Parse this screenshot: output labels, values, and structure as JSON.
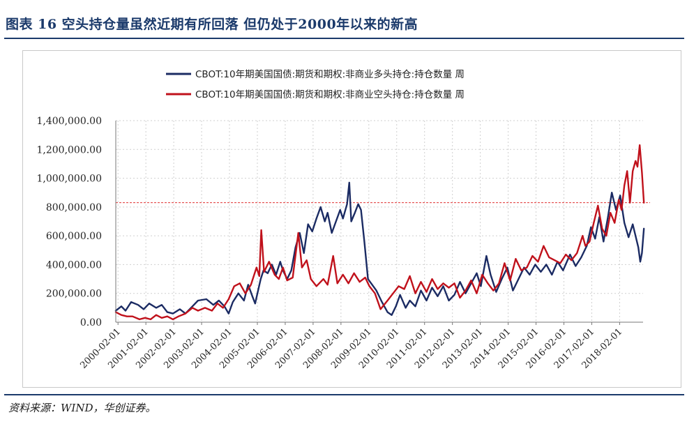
{
  "figure": {
    "title": "图表 16 空头持仓量虽然近期有所回落 但仍处于2000年以来的新高",
    "source": "资料来源：WIND，华创证券。"
  },
  "colors": {
    "long_series": "#1b2b63",
    "short_series": "#c0111b",
    "reference_line": "#e03030",
    "grid": "#cfcfcf",
    "title": "#1b3a6b"
  },
  "chart_data": {
    "type": "line",
    "title": "",
    "xlabel": "",
    "ylabel": "",
    "ylim": [
      0,
      1400000
    ],
    "yticks": [
      0,
      200000,
      400000,
      600000,
      800000,
      1000000,
      1200000,
      1400000
    ],
    "ytick_labels": [
      "0.00",
      "200,000.00",
      "400,000.00",
      "600,000.00",
      "800,000.00",
      "1,000,000.00",
      "1,200,000.00",
      "1,400,000.00"
    ],
    "xlim": [
      2000.0,
      2018.92
    ],
    "xticks": [
      2000.08,
      2001.08,
      2002.08,
      2003.08,
      2004.08,
      2005.08,
      2006.08,
      2007.08,
      2008.08,
      2009.08,
      2010.08,
      2011.08,
      2012.08,
      2013.08,
      2014.08,
      2015.08,
      2016.08,
      2017.08,
      2018.08
    ],
    "xtick_labels": [
      "2000-02-01",
      "2001-02-01",
      "2002-02-01",
      "2003-02-01",
      "2004-02-01",
      "2005-02-01",
      "2006-02-01",
      "2007-02-01",
      "2008-02-01",
      "2009-02-01",
      "2010-02-01",
      "2011-02-01",
      "2012-02-01",
      "2013-02-01",
      "2014-02-01",
      "2015-02-01",
      "2016-02-01",
      "2017-02-01",
      "2018-02-01"
    ],
    "grid": true,
    "legend_position": "top",
    "reference_line": {
      "y": 830000,
      "style": "dashed"
    },
    "series": [
      {
        "name": "CBOT:10年期美国国债:期货和期权:非商业多头持仓:持仓数量 周",
        "color": "#1b2b63",
        "points": [
          [
            2000.0,
            80000
          ],
          [
            2000.2,
            110000
          ],
          [
            2000.35,
            80000
          ],
          [
            2000.55,
            140000
          ],
          [
            2000.8,
            120000
          ],
          [
            2001.0,
            90000
          ],
          [
            2001.2,
            130000
          ],
          [
            2001.45,
            100000
          ],
          [
            2001.65,
            120000
          ],
          [
            2001.85,
            70000
          ],
          [
            2002.05,
            60000
          ],
          [
            2002.3,
            90000
          ],
          [
            2002.5,
            60000
          ],
          [
            2002.75,
            110000
          ],
          [
            2002.95,
            150000
          ],
          [
            2003.25,
            160000
          ],
          [
            2003.5,
            120000
          ],
          [
            2003.7,
            150000
          ],
          [
            2003.9,
            110000
          ],
          [
            2004.05,
            60000
          ],
          [
            2004.2,
            140000
          ],
          [
            2004.4,
            200000
          ],
          [
            2004.6,
            150000
          ],
          [
            2004.75,
            260000
          ],
          [
            2004.9,
            180000
          ],
          [
            2005.0,
            130000
          ],
          [
            2005.2,
            300000
          ],
          [
            2005.3,
            360000
          ],
          [
            2005.45,
            340000
          ],
          [
            2005.6,
            400000
          ],
          [
            2005.75,
            330000
          ],
          [
            2005.9,
            420000
          ],
          [
            2006.0,
            360000
          ],
          [
            2006.15,
            300000
          ],
          [
            2006.3,
            360000
          ],
          [
            2006.45,
            520000
          ],
          [
            2006.6,
            620000
          ],
          [
            2006.75,
            480000
          ],
          [
            2006.9,
            680000
          ],
          [
            2007.05,
            630000
          ],
          [
            2007.2,
            720000
          ],
          [
            2007.35,
            800000
          ],
          [
            2007.5,
            700000
          ],
          [
            2007.6,
            760000
          ],
          [
            2007.75,
            620000
          ],
          [
            2007.9,
            700000
          ],
          [
            2008.05,
            780000
          ],
          [
            2008.15,
            720000
          ],
          [
            2008.3,
            820000
          ],
          [
            2008.38,
            970000
          ],
          [
            2008.45,
            700000
          ],
          [
            2008.58,
            760000
          ],
          [
            2008.7,
            820000
          ],
          [
            2008.8,
            780000
          ],
          [
            2008.92,
            560000
          ],
          [
            2009.05,
            300000
          ],
          [
            2009.2,
            260000
          ],
          [
            2009.35,
            220000
          ],
          [
            2009.55,
            140000
          ],
          [
            2009.75,
            70000
          ],
          [
            2009.9,
            50000
          ],
          [
            2010.05,
            110000
          ],
          [
            2010.2,
            190000
          ],
          [
            2010.4,
            100000
          ],
          [
            2010.55,
            150000
          ],
          [
            2010.75,
            110000
          ],
          [
            2010.95,
            220000
          ],
          [
            2011.15,
            150000
          ],
          [
            2011.35,
            240000
          ],
          [
            2011.55,
            180000
          ],
          [
            2011.75,
            250000
          ],
          [
            2011.95,
            150000
          ],
          [
            2012.15,
            190000
          ],
          [
            2012.35,
            280000
          ],
          [
            2012.55,
            200000
          ],
          [
            2012.75,
            270000
          ],
          [
            2012.95,
            340000
          ],
          [
            2013.1,
            250000
          ],
          [
            2013.3,
            460000
          ],
          [
            2013.45,
            330000
          ],
          [
            2013.65,
            210000
          ],
          [
            2013.85,
            300000
          ],
          [
            2014.05,
            380000
          ],
          [
            2014.25,
            220000
          ],
          [
            2014.45,
            300000
          ],
          [
            2014.65,
            380000
          ],
          [
            2014.85,
            330000
          ],
          [
            2015.05,
            400000
          ],
          [
            2015.25,
            350000
          ],
          [
            2015.45,
            400000
          ],
          [
            2015.65,
            330000
          ],
          [
            2015.85,
            420000
          ],
          [
            2016.05,
            360000
          ],
          [
            2016.3,
            470000
          ],
          [
            2016.5,
            390000
          ],
          [
            2016.7,
            450000
          ],
          [
            2016.9,
            530000
          ],
          [
            2017.05,
            660000
          ],
          [
            2017.2,
            580000
          ],
          [
            2017.35,
            730000
          ],
          [
            2017.5,
            560000
          ],
          [
            2017.65,
            720000
          ],
          [
            2017.8,
            900000
          ],
          [
            2017.95,
            780000
          ],
          [
            2018.1,
            880000
          ],
          [
            2018.25,
            690000
          ],
          [
            2018.4,
            590000
          ],
          [
            2018.55,
            680000
          ],
          [
            2018.65,
            600000
          ],
          [
            2018.75,
            520000
          ],
          [
            2018.82,
            420000
          ],
          [
            2018.88,
            480000
          ],
          [
            2018.95,
            650000
          ]
        ]
      },
      {
        "name": "CBOT:10年期美国国债:期货和期权:非商业空头持仓:持仓数量 周",
        "color": "#c0111b",
        "points": [
          [
            2000.0,
            70000
          ],
          [
            2000.2,
            50000
          ],
          [
            2000.4,
            40000
          ],
          [
            2000.6,
            40000
          ],
          [
            2000.85,
            20000
          ],
          [
            2001.05,
            30000
          ],
          [
            2001.25,
            20000
          ],
          [
            2001.45,
            50000
          ],
          [
            2001.65,
            30000
          ],
          [
            2001.85,
            40000
          ],
          [
            2002.05,
            20000
          ],
          [
            2002.25,
            40000
          ],
          [
            2002.5,
            60000
          ],
          [
            2002.75,
            100000
          ],
          [
            2002.95,
            80000
          ],
          [
            2003.2,
            100000
          ],
          [
            2003.45,
            80000
          ],
          [
            2003.65,
            130000
          ],
          [
            2003.85,
            100000
          ],
          [
            2004.05,
            160000
          ],
          [
            2004.25,
            250000
          ],
          [
            2004.45,
            270000
          ],
          [
            2004.65,
            200000
          ],
          [
            2004.85,
            260000
          ],
          [
            2005.05,
            380000
          ],
          [
            2005.15,
            320000
          ],
          [
            2005.22,
            640000
          ],
          [
            2005.32,
            350000
          ],
          [
            2005.5,
            420000
          ],
          [
            2005.7,
            330000
          ],
          [
            2005.85,
            300000
          ],
          [
            2006.0,
            380000
          ],
          [
            2006.15,
            290000
          ],
          [
            2006.35,
            310000
          ],
          [
            2006.55,
            620000
          ],
          [
            2006.68,
            380000
          ],
          [
            2006.85,
            430000
          ],
          [
            2007.0,
            300000
          ],
          [
            2007.2,
            250000
          ],
          [
            2007.45,
            300000
          ],
          [
            2007.6,
            260000
          ],
          [
            2007.8,
            460000
          ],
          [
            2007.95,
            270000
          ],
          [
            2008.15,
            330000
          ],
          [
            2008.35,
            270000
          ],
          [
            2008.55,
            340000
          ],
          [
            2008.75,
            280000
          ],
          [
            2008.95,
            310000
          ],
          [
            2009.1,
            250000
          ],
          [
            2009.3,
            200000
          ],
          [
            2009.5,
            90000
          ],
          [
            2009.75,
            150000
          ],
          [
            2009.95,
            200000
          ],
          [
            2010.15,
            250000
          ],
          [
            2010.35,
            230000
          ],
          [
            2010.55,
            320000
          ],
          [
            2010.75,
            200000
          ],
          [
            2010.95,
            280000
          ],
          [
            2011.15,
            210000
          ],
          [
            2011.35,
            300000
          ],
          [
            2011.55,
            230000
          ],
          [
            2011.75,
            270000
          ],
          [
            2011.95,
            240000
          ],
          [
            2012.15,
            270000
          ],
          [
            2012.35,
            170000
          ],
          [
            2012.55,
            220000
          ],
          [
            2012.75,
            290000
          ],
          [
            2012.95,
            200000
          ],
          [
            2013.15,
            330000
          ],
          [
            2013.35,
            270000
          ],
          [
            2013.55,
            220000
          ],
          [
            2013.75,
            270000
          ],
          [
            2013.95,
            410000
          ],
          [
            2014.15,
            290000
          ],
          [
            2014.35,
            440000
          ],
          [
            2014.55,
            360000
          ],
          [
            2014.75,
            380000
          ],
          [
            2014.95,
            460000
          ],
          [
            2015.15,
            420000
          ],
          [
            2015.35,
            530000
          ],
          [
            2015.55,
            450000
          ],
          [
            2015.75,
            430000
          ],
          [
            2015.95,
            410000
          ],
          [
            2016.15,
            470000
          ],
          [
            2016.35,
            430000
          ],
          [
            2016.55,
            480000
          ],
          [
            2016.75,
            600000
          ],
          [
            2016.85,
            530000
          ],
          [
            2017.0,
            560000
          ],
          [
            2017.15,
            690000
          ],
          [
            2017.3,
            810000
          ],
          [
            2017.45,
            650000
          ],
          [
            2017.6,
            600000
          ],
          [
            2017.75,
            760000
          ],
          [
            2017.9,
            690000
          ],
          [
            2018.05,
            850000
          ],
          [
            2018.15,
            780000
          ],
          [
            2018.25,
            950000
          ],
          [
            2018.35,
            1050000
          ],
          [
            2018.45,
            830000
          ],
          [
            2018.55,
            1050000
          ],
          [
            2018.65,
            1120000
          ],
          [
            2018.72,
            1080000
          ],
          [
            2018.8,
            1230000
          ],
          [
            2018.88,
            1040000
          ],
          [
            2018.95,
            830000
          ]
        ]
      }
    ]
  }
}
